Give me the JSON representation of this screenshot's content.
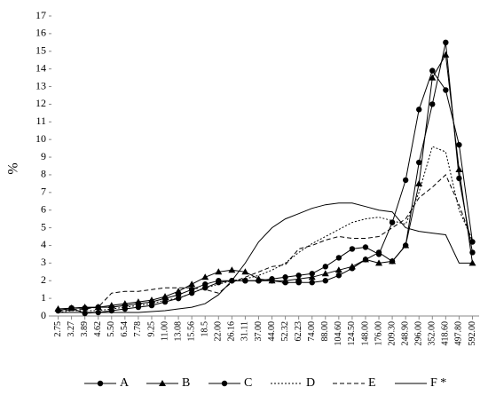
{
  "chart_data": {
    "type": "line",
    "ylabel": "%",
    "categories": [
      "2.75",
      "3.27",
      "3.89",
      "4.62",
      "5.50",
      "6.54",
      "7.78",
      "9.25",
      "11.00",
      "13.08",
      "15.56",
      "18.5",
      "22.00",
      "26.16",
      "31.11",
      "37.00",
      "44.00",
      "52.32",
      "62.23",
      "74.00",
      "88.00",
      "104.60",
      "124.50",
      "148.00",
      "176.00",
      "209.30",
      "248.90",
      "296.00",
      "352.00",
      "418.60",
      "497.80",
      "592.00"
    ],
    "ylim": [
      0,
      17
    ],
    "yticks": [
      0,
      1,
      2,
      3,
      4,
      5,
      6,
      7,
      8,
      9,
      10,
      11,
      12,
      13,
      14,
      15,
      16,
      17
    ],
    "grid": false,
    "legend": "bottom",
    "series": [
      {
        "name": "A",
        "color": "#000000",
        "marker": "circle",
        "dash": "none",
        "values": [
          0.3,
          0.45,
          0.15,
          0.2,
          0.3,
          0.4,
          0.5,
          0.6,
          0.8,
          1.0,
          1.3,
          1.6,
          1.9,
          2.0,
          2.0,
          2.0,
          2.0,
          1.9,
          1.9,
          1.9,
          2.0,
          2.3,
          2.7,
          3.2,
          3.6,
          3.1,
          4.0,
          8.7,
          12.0,
          15.5,
          7.8,
          3.6
        ]
      },
      {
        "name": "B",
        "color": "#000000",
        "marker": "triangle",
        "dash": "none",
        "values": [
          0.4,
          0.45,
          0.5,
          0.5,
          0.6,
          0.7,
          0.8,
          0.9,
          1.1,
          1.4,
          1.8,
          2.2,
          2.5,
          2.6,
          2.5,
          2.1,
          2.0,
          2.0,
          2.1,
          2.2,
          2.4,
          2.6,
          2.8,
          3.2,
          3.0,
          3.1,
          4.0,
          7.5,
          13.5,
          14.8,
          8.3,
          3.0
        ]
      },
      {
        "name": "C",
        "color": "#000000",
        "marker": "circle",
        "dash": "none",
        "values": [
          0.3,
          0.45,
          0.45,
          0.5,
          0.5,
          0.6,
          0.7,
          0.8,
          1.0,
          1.2,
          1.5,
          1.8,
          2.0,
          2.0,
          2.0,
          2.0,
          2.1,
          2.2,
          2.3,
          2.4,
          2.8,
          3.3,
          3.8,
          3.9,
          3.5,
          5.3,
          7.7,
          11.7,
          13.9,
          12.8,
          9.7,
          4.2
        ]
      },
      {
        "name": "D",
        "color": "#000000",
        "marker": "none",
        "dash": "2,2",
        "values": [
          0.2,
          0.3,
          0.3,
          0.3,
          0.4,
          0.5,
          0.6,
          0.7,
          0.9,
          1.0,
          1.3,
          1.6,
          1.8,
          2.0,
          2.1,
          2.3,
          2.6,
          3.0,
          3.6,
          4.1,
          4.5,
          4.9,
          5.3,
          5.5,
          5.6,
          5.4,
          5.2,
          7.0,
          9.6,
          9.3,
          6.0,
          4.3
        ]
      },
      {
        "name": "E",
        "color": "#000000",
        "marker": "none",
        "dash": "5,3",
        "values": [
          0.3,
          0.35,
          0.4,
          0.5,
          1.3,
          1.4,
          1.4,
          1.5,
          1.6,
          1.6,
          1.6,
          1.5,
          1.3,
          1.9,
          2.2,
          2.5,
          2.8,
          2.9,
          3.8,
          4.0,
          4.3,
          4.5,
          4.4,
          4.4,
          4.5,
          5.0,
          5.5,
          6.7,
          7.3,
          8.0,
          6.3,
          4.2
        ]
      },
      {
        "name": "F *",
        "color": "#000000",
        "marker": "none",
        "dash": "none",
        "values": [
          0.2,
          0.2,
          0.2,
          0.2,
          0.2,
          0.2,
          0.2,
          0.25,
          0.3,
          0.4,
          0.5,
          0.7,
          1.2,
          2.0,
          3.0,
          4.2,
          5.0,
          5.5,
          5.8,
          6.1,
          6.3,
          6.4,
          6.4,
          6.2,
          6.0,
          5.9,
          5.0,
          4.8,
          4.7,
          4.6,
          3.0,
          3.0
        ]
      }
    ]
  }
}
